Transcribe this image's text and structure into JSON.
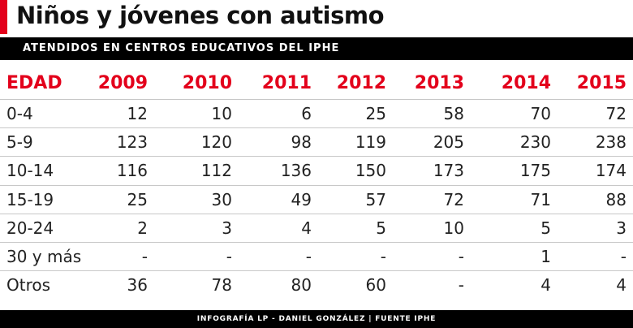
{
  "header": {
    "title": "Niños y jóvenes con autismo",
    "subtitle": "ATENDIDOS EN CENTROS EDUCATIVOS DEL IPHE"
  },
  "table": {
    "columns": [
      "EDAD",
      "2009",
      "2010",
      "2011",
      "2012",
      "2013",
      "2014",
      "2015"
    ],
    "rows": [
      [
        "0-4",
        12,
        10,
        6,
        25,
        58,
        70,
        72
      ],
      [
        "5-9",
        123,
        120,
        98,
        119,
        205,
        230,
        238
      ],
      [
        "10-14",
        116,
        112,
        136,
        150,
        173,
        175,
        174
      ],
      [
        "15-19",
        25,
        30,
        49,
        57,
        72,
        71,
        88
      ],
      [
        "20-24",
        2,
        3,
        4,
        5,
        10,
        5,
        3
      ],
      [
        "30 y más",
        "-",
        "-",
        "-",
        "-",
        "-",
        1,
        "-"
      ],
      [
        "Otros",
        36,
        78,
        80,
        60,
        "-",
        4,
        4
      ]
    ]
  },
  "footer": {
    "credit": "INFOGRAFÍA LP - DANIEL GONZÁLEZ | FUENTE IPHE"
  }
}
